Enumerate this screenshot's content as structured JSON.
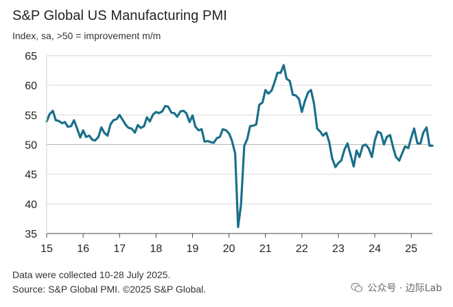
{
  "chart_data": {
    "type": "line",
    "title": "S&P Global US Manufacturing PMI",
    "subtitle": "Index, sa, >50 = improvement m/m",
    "xlabel": "",
    "ylabel": "",
    "x_ticks": [
      "15",
      "16",
      "17",
      "18",
      "19",
      "20",
      "21",
      "22",
      "23",
      "24",
      "25"
    ],
    "y_ticks": [
      35,
      40,
      45,
      50,
      55,
      60,
      65
    ],
    "ylim": [
      35,
      65
    ],
    "xlim": [
      2015,
      2025.58
    ],
    "grid": "horizontal",
    "reference_line": 50,
    "color": "#1a6f8a",
    "series": [
      {
        "name": "US Manufacturing PMI",
        "x": [
          2015.0,
          2015.08,
          2015.17,
          2015.25,
          2015.33,
          2015.42,
          2015.5,
          2015.58,
          2015.67,
          2015.75,
          2015.83,
          2015.92,
          2016.0,
          2016.08,
          2016.17,
          2016.25,
          2016.33,
          2016.42,
          2016.5,
          2016.58,
          2016.67,
          2016.75,
          2016.83,
          2016.92,
          2017.0,
          2017.08,
          2017.17,
          2017.25,
          2017.33,
          2017.42,
          2017.5,
          2017.58,
          2017.67,
          2017.75,
          2017.83,
          2017.92,
          2018.0,
          2018.08,
          2018.17,
          2018.25,
          2018.33,
          2018.42,
          2018.5,
          2018.58,
          2018.67,
          2018.75,
          2018.83,
          2018.92,
          2019.0,
          2019.08,
          2019.17,
          2019.25,
          2019.33,
          2019.42,
          2019.5,
          2019.58,
          2019.67,
          2019.75,
          2019.83,
          2019.92,
          2020.0,
          2020.08,
          2020.17,
          2020.25,
          2020.33,
          2020.42,
          2020.5,
          2020.58,
          2020.67,
          2020.75,
          2020.83,
          2020.92,
          2021.0,
          2021.08,
          2021.17,
          2021.25,
          2021.33,
          2021.42,
          2021.5,
          2021.58,
          2021.67,
          2021.75,
          2021.83,
          2021.92,
          2022.0,
          2022.08,
          2022.17,
          2022.25,
          2022.33,
          2022.42,
          2022.5,
          2022.58,
          2022.67,
          2022.75,
          2022.83,
          2022.92,
          2023.0,
          2023.08,
          2023.17,
          2023.25,
          2023.33,
          2023.42,
          2023.5,
          2023.58,
          2023.67,
          2023.75,
          2023.83,
          2023.92,
          2024.0,
          2024.08,
          2024.17,
          2024.25,
          2024.33,
          2024.42,
          2024.5,
          2024.58,
          2024.67,
          2024.75,
          2024.83,
          2024.92,
          2025.0,
          2025.08,
          2025.17,
          2025.25,
          2025.33,
          2025.42,
          2025.5,
          2025.58
        ],
        "values": [
          53.9,
          55.1,
          55.7,
          54.1,
          54.0,
          53.6,
          53.8,
          53.0,
          53.1,
          54.1,
          52.8,
          51.2,
          52.4,
          51.3,
          51.5,
          50.8,
          50.7,
          51.3,
          52.9,
          52.0,
          51.5,
          53.4,
          54.1,
          54.3,
          55.0,
          54.2,
          53.3,
          52.8,
          52.7,
          52.0,
          53.3,
          52.8,
          53.1,
          54.6,
          53.9,
          55.1,
          55.5,
          55.3,
          55.6,
          56.5,
          56.4,
          55.4,
          55.3,
          54.7,
          55.6,
          55.7,
          55.3,
          53.8,
          54.9,
          53.0,
          52.4,
          52.6,
          50.5,
          50.6,
          50.4,
          50.3,
          51.1,
          51.3,
          52.6,
          52.4,
          51.9,
          50.7,
          48.5,
          36.1,
          39.8,
          49.8,
          50.9,
          53.1,
          53.2,
          53.4,
          56.7,
          57.1,
          59.2,
          58.6,
          59.1,
          60.5,
          62.1,
          62.1,
          63.4,
          61.1,
          60.7,
          58.4,
          58.3,
          57.7,
          55.5,
          57.3,
          58.8,
          59.2,
          57.0,
          52.7,
          52.2,
          51.5,
          52.0,
          50.4,
          47.7,
          46.2,
          46.9,
          47.3,
          49.2,
          50.2,
          48.4,
          46.3,
          49.0,
          47.9,
          49.8,
          50.0,
          49.4,
          47.9,
          50.7,
          52.2,
          51.9,
          50.0,
          51.3,
          51.6,
          49.6,
          47.9,
          47.3,
          48.5,
          49.7,
          49.4,
          51.2,
          52.7,
          50.2,
          50.2,
          52.0,
          52.9,
          49.8,
          49.8
        ]
      }
    ]
  },
  "footer": {
    "line1": "Data were collected 10-28 July 2025.",
    "line2": "Source: S&P Global PMI. ©2025 S&P Global."
  },
  "watermark": {
    "text": "公众号 · 边际Lab",
    "icon": "wechat-icon"
  }
}
